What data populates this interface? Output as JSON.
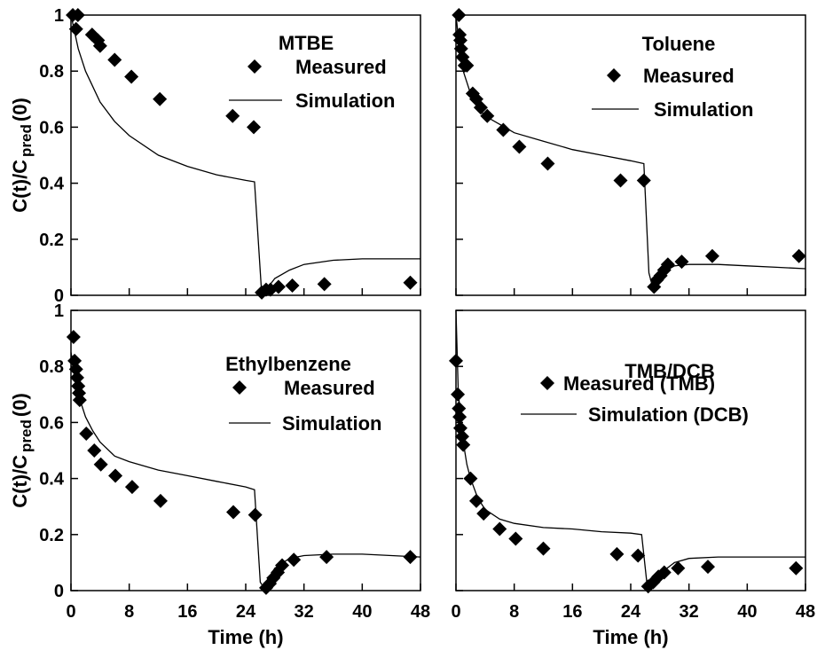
{
  "chart_data": [
    {
      "type": "line",
      "title": "MTBE",
      "ylabel": [
        "C(t)/C",
        "pred",
        "(0)"
      ],
      "xlim": [
        0,
        48
      ],
      "ylim": [
        0,
        1
      ],
      "xticks": [
        0,
        8,
        16,
        24,
        32,
        40,
        48
      ],
      "yticks": [
        0,
        0.2,
        0.4,
        0.6,
        0.8,
        1
      ],
      "xtick_labels": false,
      "ytick_labels": true,
      "series": [
        {
          "name": "Measured",
          "type": "scatter",
          "color": "#000000",
          "x": [
            0.25,
            0.95,
            0.7,
            2.9,
            3.7,
            4.0,
            6.0,
            8.3,
            12.2,
            22.2,
            25.1,
            26.2,
            26.8,
            27.4,
            28.5,
            30.4,
            34.8,
            46.6
          ],
          "values": [
            1.0,
            1.0,
            0.95,
            0.93,
            0.91,
            0.89,
            0.84,
            0.78,
            0.7,
            0.64,
            0.6,
            0.01,
            0.02,
            0.02,
            0.03,
            0.035,
            0.04,
            0.045
          ]
        },
        {
          "name": "Simulation",
          "type": "line",
          "color": "#000000",
          "x": [
            0,
            1,
            2,
            4,
            6,
            8,
            12,
            16,
            20,
            24,
            25.2,
            26.2,
            28,
            30,
            32,
            36,
            40,
            44,
            48
          ],
          "values": [
            1.0,
            0.88,
            0.8,
            0.69,
            0.62,
            0.57,
            0.5,
            0.46,
            0.43,
            0.41,
            0.405,
            0.0,
            0.06,
            0.09,
            0.11,
            0.125,
            0.13,
            0.13,
            0.13
          ]
        }
      ]
    },
    {
      "type": "line",
      "title": "Toluene",
      "xlim": [
        0,
        48
      ],
      "ylim": [
        0,
        1
      ],
      "xticks": [
        0,
        8,
        16,
        24,
        32,
        40,
        48
      ],
      "yticks": [
        0,
        0.2,
        0.4,
        0.6,
        0.8,
        1
      ],
      "xtick_labels": false,
      "ytick_labels": false,
      "series": [
        {
          "name": "Measured",
          "type": "scatter",
          "color": "#000000",
          "x": [
            0.4,
            0.5,
            0.6,
            0.7,
            0.9,
            1.2,
            1.5,
            2.3,
            2.8,
            3.4,
            4.3,
            6.5,
            8.7,
            12.6,
            22.6,
            25.8,
            27.2,
            27.6,
            28.1,
            28.6,
            29.1,
            31.0,
            35.2,
            47.1
          ],
          "values": [
            1.0,
            0.93,
            0.91,
            0.88,
            0.85,
            0.82,
            0.82,
            0.72,
            0.7,
            0.67,
            0.64,
            0.59,
            0.53,
            0.47,
            0.41,
            0.41,
            0.03,
            0.055,
            0.07,
            0.09,
            0.11,
            0.12,
            0.14,
            0.14
          ]
        },
        {
          "name": "Simulation",
          "type": "line",
          "color": "#000000",
          "x": [
            0,
            0.5,
            1,
            1.5,
            2,
            3,
            4,
            6,
            8,
            12,
            16,
            20,
            24,
            25.8,
            26.5,
            27,
            28,
            29,
            30,
            32,
            36,
            40,
            44,
            48
          ],
          "values": [
            1.0,
            0.88,
            0.8,
            0.76,
            0.72,
            0.67,
            0.64,
            0.61,
            0.58,
            0.55,
            0.52,
            0.5,
            0.48,
            0.47,
            0.08,
            0.03,
            0.06,
            0.09,
            0.105,
            0.11,
            0.11,
            0.105,
            0.1,
            0.095
          ]
        }
      ]
    },
    {
      "type": "line",
      "title": "Ethylbenzene",
      "ylabel": [
        "C(t)/C",
        "pred",
        "(0)"
      ],
      "xlabel": "Time (h)",
      "xlim": [
        0,
        48
      ],
      "ylim": [
        0,
        1
      ],
      "xticks": [
        0,
        8,
        16,
        24,
        32,
        40,
        48
      ],
      "yticks": [
        0,
        0.2,
        0.4,
        0.6,
        0.8,
        1
      ],
      "xtick_labels": true,
      "ytick_labels": true,
      "series": [
        {
          "name": "Measured",
          "type": "scatter",
          "color": "#000000",
          "x": [
            0.35,
            0.5,
            0.7,
            0.85,
            1.0,
            1.1,
            1.2,
            2.1,
            3.2,
            4.1,
            6.1,
            8.4,
            12.3,
            22.3,
            25.3,
            26.8,
            27.3,
            27.8,
            28.4,
            29.0,
            30.6,
            35.1,
            46.6
          ],
          "values": [
            0.905,
            0.82,
            0.79,
            0.76,
            0.73,
            0.705,
            0.68,
            0.56,
            0.5,
            0.45,
            0.41,
            0.37,
            0.32,
            0.28,
            0.27,
            0.01,
            0.025,
            0.045,
            0.065,
            0.09,
            0.11,
            0.12,
            0.12
          ]
        },
        {
          "name": "Simulation",
          "type": "line",
          "color": "#000000",
          "x": [
            0,
            0.5,
            1,
            1.5,
            2,
            3,
            4,
            6,
            8,
            12,
            16,
            20,
            24,
            25.2,
            26,
            26.5,
            27,
            28,
            30,
            32,
            36,
            40,
            44,
            48
          ],
          "values": [
            0.85,
            0.78,
            0.72,
            0.66,
            0.62,
            0.57,
            0.53,
            0.48,
            0.46,
            0.43,
            0.41,
            0.39,
            0.37,
            0.36,
            0.03,
            0.01,
            0.04,
            0.08,
            0.115,
            0.125,
            0.13,
            0.13,
            0.125,
            0.12
          ]
        }
      ]
    },
    {
      "type": "line",
      "title": "TMB/DCB",
      "xlabel": "Time (h)",
      "xlim": [
        0,
        48
      ],
      "ylim": [
        0,
        1
      ],
      "xticks": [
        0,
        8,
        16,
        24,
        32,
        40,
        48
      ],
      "yticks": [
        0,
        0.2,
        0.4,
        0.6,
        0.8,
        1
      ],
      "xtick_labels": true,
      "ytick_labels": false,
      "series": [
        {
          "name": "Measured (TMB)",
          "type": "scatter",
          "color": "#000000",
          "x": [
            0,
            0.25,
            0.4,
            0.5,
            0.6,
            0.85,
            1.0,
            2.0,
            2.8,
            3.8,
            6.0,
            8.2,
            12.0,
            22.1,
            25.0,
            26.4,
            27.1,
            27.8,
            28.6,
            30.5,
            34.6,
            46.7
          ],
          "values": [
            0.82,
            0.7,
            0.65,
            0.62,
            0.58,
            0.55,
            0.52,
            0.4,
            0.32,
            0.275,
            0.22,
            0.185,
            0.15,
            0.13,
            0.125,
            0.015,
            0.03,
            0.05,
            0.065,
            0.08,
            0.085,
            0.08
          ]
        },
        {
          "name": "Simulation (DCB)",
          "type": "line",
          "color": "#000000",
          "x": [
            0,
            0.3,
            0.6,
            1,
            1.5,
            2,
            3,
            4,
            6,
            8,
            12,
            16,
            20,
            24,
            25.5,
            26.2,
            26.8,
            28,
            29,
            30,
            32,
            36,
            40,
            44,
            48
          ],
          "values": [
            1.0,
            0.72,
            0.62,
            0.53,
            0.45,
            0.4,
            0.33,
            0.29,
            0.255,
            0.24,
            0.225,
            0.22,
            0.21,
            0.205,
            0.2,
            0.03,
            0.005,
            0.04,
            0.08,
            0.1,
            0.115,
            0.12,
            0.12,
            0.12,
            0.12
          ]
        }
      ]
    }
  ]
}
